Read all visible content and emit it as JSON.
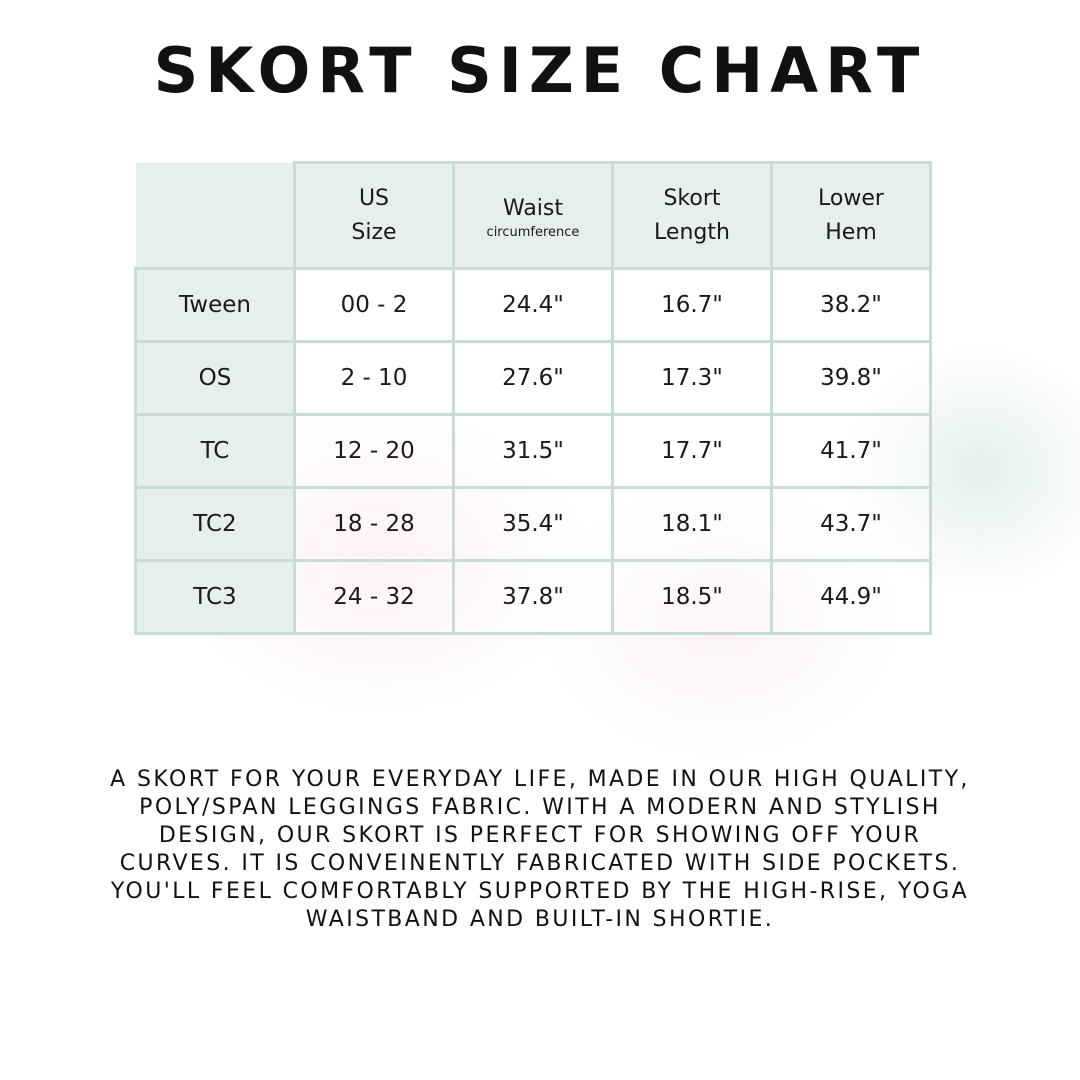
{
  "title": "SKORT SIZE CHART",
  "table": {
    "headers": [
      {
        "line1": "US",
        "line2": "Size"
      },
      {
        "line1": "Waist",
        "line2": "circumference"
      },
      {
        "line1": "Skort",
        "line2": "Length"
      },
      {
        "line1": "Lower",
        "line2": "Hem"
      }
    ],
    "rows": [
      {
        "label": "Tween",
        "us_size": "00 - 2",
        "waist": "24.4\"",
        "length": "16.7\"",
        "hem": "38.2\""
      },
      {
        "label": "OS",
        "us_size": "2 - 10",
        "waist": "27.6\"",
        "length": "17.3\"",
        "hem": "39.8\""
      },
      {
        "label": "TC",
        "us_size": "12 - 20",
        "waist": "31.5\"",
        "length": "17.7\"",
        "hem": "41.7\""
      },
      {
        "label": "TC2",
        "us_size": "18 - 28",
        "waist": "35.4\"",
        "length": "18.1\"",
        "hem": "43.7\""
      },
      {
        "label": "TC3",
        "us_size": "24 - 32",
        "waist": "37.8\"",
        "length": "18.5\"",
        "hem": "44.9\""
      }
    ]
  },
  "description": "A skort for your everyday life, made in our high quality, poly/span leggings fabric. With a modern and stylish design, our skort is perfect for showing off your curves. It is conveinently fabricated with side pockets. You'll feel comfortably supported by the high-rise, yoga waistband and built-in shortie.",
  "colors": {
    "header_fill": "#e6efea",
    "border": "#c7ddd1",
    "text": "#111111"
  }
}
